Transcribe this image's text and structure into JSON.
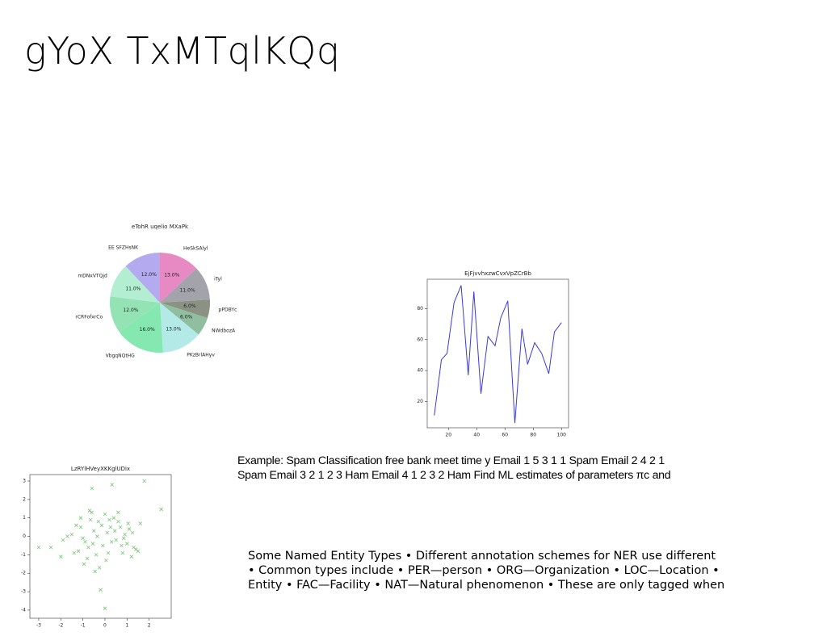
{
  "title": "gYoX TxMTqlKQq",
  "chart_data": [
    {
      "type": "pie",
      "title": "eTohR uqelio MXaPk",
      "categories": [
        "HeSkSAlyl",
        "iTyl",
        "pPDBYc",
        "NWdbozA",
        "PKzBrlAHyv",
        "VbgqNQtHG",
        "rCRFofxrCo",
        "mDNxVTQjd",
        "EE SFZHsNK"
      ],
      "values": [
        13,
        11,
        6,
        6,
        13,
        16,
        12,
        11,
        12
      ],
      "value_labels": [
        "13.0%",
        "11.0%",
        "6.0%",
        "6.0%",
        "13.0%",
        "16.0%",
        "12.0%",
        "11.0%",
        "12.0%"
      ],
      "colors": [
        "#e78ac3",
        "#a3a3ab",
        "#8c9283",
        "#8fbf9f",
        "#b3e9e6",
        "#84e8b0",
        "#93e3b4",
        "#b3edd2",
        "#b4aaf0"
      ]
    },
    {
      "type": "line",
      "title": "EjFjvvhxzwCvxVpZCrBb",
      "x": [
        10,
        15,
        19,
        24,
        29,
        34,
        38,
        43,
        48,
        53,
        57,
        62,
        67,
        72,
        76,
        81,
        86,
        91,
        95,
        100
      ],
      "values": [
        11,
        47,
        51,
        84,
        95,
        37,
        91,
        25,
        62,
        56,
        74,
        85,
        6,
        67,
        44,
        58,
        51,
        38,
        65,
        71
      ],
      "color": "#3b3bd9",
      "xlim": [
        5,
        105
      ],
      "ylim": [
        3,
        99
      ],
      "xticks": [
        20,
        40,
        60,
        80,
        100
      ],
      "yticks": [
        20,
        40,
        60,
        80
      ]
    },
    {
      "type": "scatter",
      "title": "LzRYlHVeyXKKglUDix",
      "x": [
        -0.59,
        0.32,
        1.78,
        2.55,
        -3.0,
        -2.45,
        -2.0,
        0.0,
        -0.2,
        -0.45,
        -1.1,
        -0.9,
        -0.6,
        -0.3,
        0.1,
        0.4,
        0.7,
        1.0,
        1.3,
        1.6,
        -1.5,
        -1.2,
        -0.8,
        -0.5,
        -0.1,
        0.2,
        0.5,
        0.8,
        1.1,
        1.4,
        -1.7,
        -1.3,
        -1.0,
        -0.7,
        -0.4,
        0.0,
        0.3,
        0.6,
        0.9,
        1.2,
        -1.4,
        -1.1,
        -0.75,
        -0.35,
        0.05,
        0.45,
        0.85,
        1.25,
        -0.95,
        -0.15,
        0.6,
        -0.55,
        0.25,
        1.5,
        -1.9,
        -0.25,
        0.75,
        -0.65,
        0.15,
        1.05
      ],
      "values": [
        2.6,
        2.8,
        3.0,
        1.47,
        -0.6,
        -0.6,
        -1.1,
        -3.9,
        -2.9,
        -1.9,
        0.5,
        -0.3,
        1.3,
        0.8,
        0.2,
        1.0,
        0.5,
        -0.4,
        -0.6,
        0.7,
        0.1,
        -0.8,
        -1.2,
        0.3,
        -0.5,
        0.9,
        -0.2,
        -0.9,
        0.4,
        -0.7,
        0.0,
        0.6,
        -0.1,
        1.4,
        -1.0,
        1.2,
        -0.3,
        0.8,
        0.1,
        -1.1,
        -0.9,
        1.0,
        -0.6,
        0.0,
        -1.3,
        0.3,
        -0.1,
        0.2,
        -1.5,
        0.6,
        1.3,
        -0.4,
        0.5,
        -0.8,
        -0.2,
        -1.7,
        -0.5,
        0.9,
        -0.9,
        0.7
      ],
      "color": "#4daf4a",
      "marker": "x",
      "xlim": [
        -3.4,
        3.0
      ],
      "ylim": [
        -4.44,
        3.35
      ],
      "xticks": [
        -3,
        -2,
        -1,
        0,
        1,
        2
      ],
      "yticks": [
        -4,
        -3,
        -2,
        -1,
        0,
        1,
        2,
        3
      ]
    }
  ],
  "texts": [
    {
      "lines": [
        "Example: Spam Classification free bank meet time y Email 1 5 3 1 1 Spam Email 2 4 2 1",
        "Spam Email 3 2 1 2 3 Ham Email 4 1 2 3 2 Ham Find ML estimates of parameters πc and"
      ]
    },
    {
      "lines": [
        "Some Named Entity Types • Different annotation schemes for NER use different",
        "• Common types include • PER—person • ORG—Organization • LOC—Location •",
        "Entity • FAC—Facility • NAT—Natural phenomenon • These are only tagged when"
      ]
    }
  ]
}
